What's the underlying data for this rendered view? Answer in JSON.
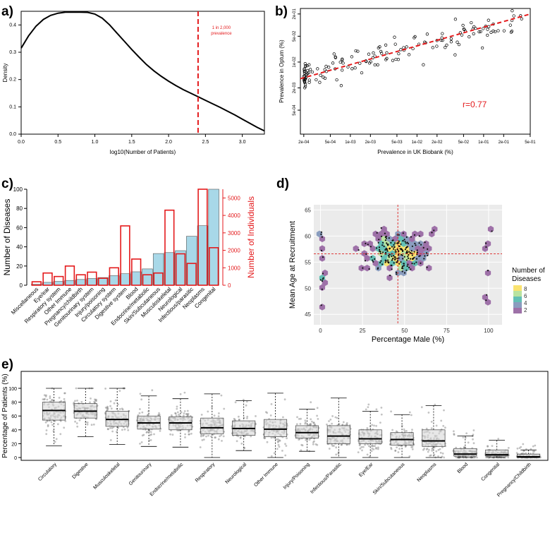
{
  "panels": {
    "a": "a)",
    "b": "b)",
    "c": "c)",
    "d": "d)",
    "e": "e)"
  },
  "chart_data": [
    {
      "id": "a",
      "type": "line",
      "xlabel": "log10(Number of Patients)",
      "ylabel": "Density",
      "xlim": [
        0,
        3.3
      ],
      "ylim": [
        0,
        0.45
      ],
      "xticks": [
        "0.0",
        "0.5",
        "1.0",
        "1.5",
        "2.0",
        "2.5",
        "3.0"
      ],
      "yticks": [
        "0.0",
        "0.1",
        "0.2",
        "0.3",
        "0.4"
      ],
      "x": [
        0,
        0.1,
        0.2,
        0.3,
        0.4,
        0.5,
        0.6,
        0.7,
        0.8,
        0.9,
        1.0,
        1.1,
        1.2,
        1.3,
        1.4,
        1.5,
        1.6,
        1.7,
        1.8,
        1.9,
        2.0,
        2.1,
        2.2,
        2.3,
        2.4,
        2.5,
        2.6,
        2.7,
        2.8,
        2.9,
        3.0,
        3.1,
        3.2,
        3.3
      ],
      "y": [
        0.315,
        0.36,
        0.395,
        0.42,
        0.435,
        0.443,
        0.447,
        0.447,
        0.447,
        0.446,
        0.44,
        0.425,
        0.4,
        0.37,
        0.34,
        0.31,
        0.282,
        0.255,
        0.232,
        0.212,
        0.194,
        0.178,
        0.163,
        0.15,
        0.137,
        0.124,
        0.111,
        0.098,
        0.084,
        0.07,
        0.055,
        0.04,
        0.025,
        0.012
      ],
      "annotation": {
        "x": 2.4,
        "label_line1": "1 in 2,000",
        "label_line2": "prevalence",
        "color": "#e41a1c"
      }
    },
    {
      "id": "b",
      "type": "scatter",
      "xlabel": "Prevalence in UK Biobank (%)",
      "ylabel": "Prevalence in Optum (%)",
      "xlog_range": [
        -3.75,
        -0.3
      ],
      "ylog_range": [
        -3.95,
        -0.55
      ],
      "xticks": [
        "2e-04",
        "5e-04",
        "1e-03",
        "2e-03",
        "5e-03",
        "1e-02",
        "2e-02",
        "5e-02",
        "1e-01",
        "2e-01",
        "5e-01"
      ],
      "yticks": [
        "5e-04",
        "2e-03",
        "1e-02",
        "5e-02",
        "2e-01"
      ],
      "trend": {
        "x0": -3.75,
        "y0": -2.45,
        "x1": -0.3,
        "y1": -0.7,
        "color": "#e41a1c"
      },
      "stat_label": "r=0.77",
      "n_points": 150
    },
    {
      "id": "c",
      "type": "bar",
      "ylabel": "Number of Diseases",
      "y2label": "Number of Individuals",
      "ylim": [
        0,
        100
      ],
      "y2lim": [
        0,
        5500
      ],
      "yticks": [
        "0",
        "20",
        "40",
        "60",
        "80",
        "100"
      ],
      "y2ticks": [
        "0",
        "1000",
        "2000",
        "3000",
        "4000",
        "5000"
      ],
      "categories": [
        "Miscellaneous",
        "Eye/ear",
        "Respiratory system",
        "Other Immune",
        "Pregnancy/childbirth",
        "Genitourinary system",
        "Injury/poisoning",
        "Circulatory system",
        "Digestive system",
        "Blood",
        "Endocrine/metabolic",
        "Skin/Subcutaneous",
        "Musculoskeletal",
        "Neurological",
        "Infectious/parasitic",
        "Neoplasms",
        "Congenital"
      ],
      "diseases": [
        1,
        3,
        4,
        5,
        6,
        7,
        8,
        10,
        12,
        14,
        17,
        33,
        34,
        36,
        51,
        62,
        105
      ],
      "individuals": [
        200,
        700,
        500,
        1100,
        600,
        750,
        400,
        1000,
        3400,
        1500,
        600,
        700,
        4300,
        1800,
        1250,
        5500,
        2150
      ],
      "bar_color": "#a8d8e8",
      "outline_color": "#e41a1c"
    },
    {
      "id": "d",
      "type": "heatmap",
      "xlabel": "Percentage Male (%)",
      "ylabel": "Mean Age at Recruitment",
      "xticks": [
        "0",
        "25",
        "50",
        "75",
        "100"
      ],
      "yticks": [
        "45",
        "50",
        "55",
        "60",
        "65"
      ],
      "xlim": [
        -4,
        108
      ],
      "ylim": [
        43,
        66
      ],
      "vline": 46,
      "hline": 56.6,
      "legend_title_line1": "Number of",
      "legend_title_line2": "Diseases",
      "legend_ticks": [
        "8",
        "6",
        "4",
        "2"
      ],
      "n_points": 220
    },
    {
      "id": "e",
      "type": "box",
      "ylabel": "Percentage of Patients (%)",
      "ylim": [
        0,
        100
      ],
      "yticks": [
        "0",
        "20",
        "40",
        "60",
        "80",
        "100"
      ],
      "categories": [
        "Circulatory",
        "Digestive",
        "Musculoskeletal",
        "Genitourinary",
        "Endocrine/metabolic",
        "Respiratory",
        "Neurological",
        "Other Immune",
        "Injury/Poisoning",
        "Infectious/Parasitic",
        "Eye/Ear",
        "Skin/Subcutaneous",
        "Neoplasms",
        "Blood",
        "Congenital",
        "Pregnancy/Childbirth"
      ],
      "boxes": [
        {
          "min": 17,
          "q1": 54,
          "median": 68,
          "q3": 80,
          "max": 100
        },
        {
          "min": 30,
          "q1": 57,
          "median": 67,
          "q3": 78,
          "max": 100
        },
        {
          "min": 19,
          "q1": 45,
          "median": 55,
          "q3": 67,
          "max": 100
        },
        {
          "min": 16,
          "q1": 41,
          "median": 50,
          "q3": 60,
          "max": 89
        },
        {
          "min": 15,
          "q1": 40,
          "median": 50,
          "q3": 59,
          "max": 85
        },
        {
          "min": 0,
          "q1": 34,
          "median": 43,
          "q3": 57,
          "max": 92
        },
        {
          "min": 10,
          "q1": 32,
          "median": 42,
          "q3": 53,
          "max": 82
        },
        {
          "min": 0,
          "q1": 30,
          "median": 41,
          "q3": 55,
          "max": 93
        },
        {
          "min": 9,
          "q1": 28,
          "median": 36,
          "q3": 46,
          "max": 70
        },
        {
          "min": 0,
          "q1": 20,
          "median": 31,
          "q3": 46,
          "max": 86
        },
        {
          "min": 0,
          "q1": 20,
          "median": 27,
          "q3": 40,
          "max": 67
        },
        {
          "min": 0,
          "q1": 18,
          "median": 26,
          "q3": 36,
          "max": 62
        },
        {
          "min": 0,
          "q1": 16,
          "median": 24,
          "q3": 40,
          "max": 75
        },
        {
          "min": 0,
          "q1": 2,
          "median": 5,
          "q3": 13,
          "max": 31
        },
        {
          "min": 0,
          "q1": 2,
          "median": 4,
          "q3": 11,
          "max": 25
        },
        {
          "min": 0,
          "q1": 0,
          "median": 1,
          "q3": 5,
          "max": 11
        }
      ],
      "box_color": "#d9d9d9"
    }
  ]
}
